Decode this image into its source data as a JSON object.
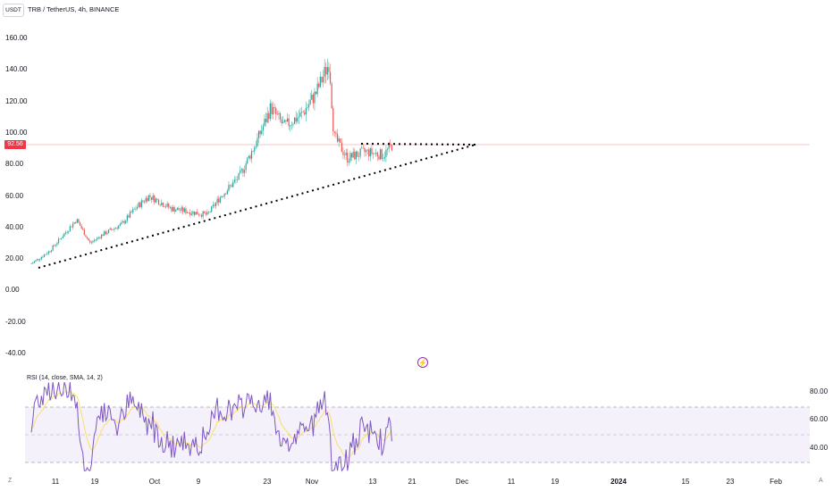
{
  "header": {
    "symbol_button": "USDT",
    "title": "TRB / TetherUS, 4h, BINANCE"
  },
  "price_axis": [
    "160.00",
    "140.00",
    "120.00",
    "100.00",
    "80.00",
    "60.00",
    "40.00",
    "20.00",
    "0.00",
    "-20.00",
    "-40.00"
  ],
  "current_price": {
    "label": "92.56",
    "value": 92.56,
    "color": "#f23645"
  },
  "rsi": {
    "title": "RSI (14, close, SMA, 14, 2)",
    "axis": [
      "80.00",
      "60.00",
      "40.00"
    ]
  },
  "time_axis": [
    {
      "label": "11",
      "bold": false
    },
    {
      "label": "19",
      "bold": false
    },
    {
      "label": "Oct",
      "bold": false
    },
    {
      "label": "9",
      "bold": false
    },
    {
      "label": "23",
      "bold": false
    },
    {
      "label": "Nov",
      "bold": false
    },
    {
      "label": "13",
      "bold": false
    },
    {
      "label": "21",
      "bold": false
    },
    {
      "label": "Dec",
      "bold": false
    },
    {
      "label": "11",
      "bold": false
    },
    {
      "label": "19",
      "bold": false
    },
    {
      "label": "2024",
      "bold": true
    },
    {
      "label": "15",
      "bold": false
    },
    {
      "label": "23",
      "bold": false
    },
    {
      "label": "Feb",
      "bold": false
    }
  ],
  "corners": {
    "left": "Z",
    "right": "A"
  },
  "colors": {
    "up": "#26a69a",
    "down": "#ef5350",
    "rsi_line": "#7e57c2",
    "rsi_ma": "#fdd835",
    "rsi_band": "#ede7f6"
  },
  "chart_data": {
    "type": "candlestick",
    "symbol": "TRB / TetherUS",
    "interval": "4h",
    "exchange": "BINANCE",
    "ylim": [
      -40,
      160
    ],
    "close_path": [
      {
        "date": "2023-09-04",
        "close": 17
      },
      {
        "date": "2023-09-08",
        "close": 25
      },
      {
        "date": "2023-09-11",
        "close": 35
      },
      {
        "date": "2023-09-14",
        "close": 45
      },
      {
        "date": "2023-09-17",
        "close": 30
      },
      {
        "date": "2023-09-20",
        "close": 36
      },
      {
        "date": "2023-09-24",
        "close": 42
      },
      {
        "date": "2023-09-27",
        "close": 52
      },
      {
        "date": "2023-09-30",
        "close": 60
      },
      {
        "date": "2023-10-02",
        "close": 57
      },
      {
        "date": "2023-10-05",
        "close": 52
      },
      {
        "date": "2023-10-09",
        "close": 50
      },
      {
        "date": "2023-10-13",
        "close": 48
      },
      {
        "date": "2023-10-16",
        "close": 60
      },
      {
        "date": "2023-10-20",
        "close": 72
      },
      {
        "date": "2023-10-24",
        "close": 95
      },
      {
        "date": "2023-10-27",
        "close": 116
      },
      {
        "date": "2023-10-30",
        "close": 104
      },
      {
        "date": "2023-11-03",
        "close": 112
      },
      {
        "date": "2023-11-06",
        "close": 125
      },
      {
        "date": "2023-11-09",
        "close": 145
      },
      {
        "date": "2023-11-10",
        "close": 98
      },
      {
        "date": "2023-11-13",
        "close": 84
      },
      {
        "date": "2023-11-17",
        "close": 88
      },
      {
        "date": "2023-11-21",
        "close": 86
      },
      {
        "date": "2023-11-23",
        "close": 92.56
      }
    ],
    "trendlines": [
      {
        "from": {
          "date": "2023-09-05",
          "price": 14
        },
        "to": {
          "date": "2023-12-02",
          "price": 92
        }
      },
      {
        "from": {
          "date": "2023-11-13",
          "price": 93
        },
        "to": {
          "date": "2023-12-02",
          "price": 92
        }
      }
    ]
  }
}
